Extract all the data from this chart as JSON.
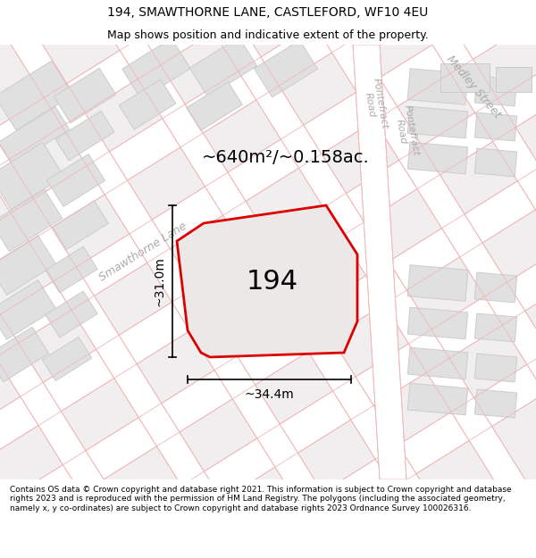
{
  "title": "194, SMAWTHORNE LANE, CASTLEFORD, WF10 4EU",
  "subtitle": "Map shows position and indicative extent of the property.",
  "area_label": "~640m²/~0.158ac.",
  "property_number": "194",
  "dim_width": "~34.4m",
  "dim_height": "~31.0m",
  "footer": "Contains OS data © Crown copyright and database right 2021. This information is subject to Crown copyright and database rights 2023 and is reproduced with the permission of HM Land Registry. The polygons (including the associated geometry, namely x, y co-ordinates) are subject to Crown copyright and database rights 2023 Ordnance Survey 100026316.",
  "map_bg": "#f0eeee",
  "road_fill": "#ffffff",
  "road_edge": "#f0b8b8",
  "building_fill": "#e0e0e0",
  "building_edge": "#cccccc",
  "property_fill": "#ede8e8",
  "property_edge": "#dd0000",
  "inner_building_fill": "#d8d4d4",
  "inner_building_edge": "#c8c4c4",
  "street_label_color": "#aaaaaa",
  "dim_color": "#000000",
  "title_fontsize": 10,
  "subtitle_fontsize": 9,
  "area_fontsize": 14,
  "number_fontsize": 22,
  "street_fontsize": 9,
  "dim_fontsize": 10,
  "footer_fontsize": 6.5
}
